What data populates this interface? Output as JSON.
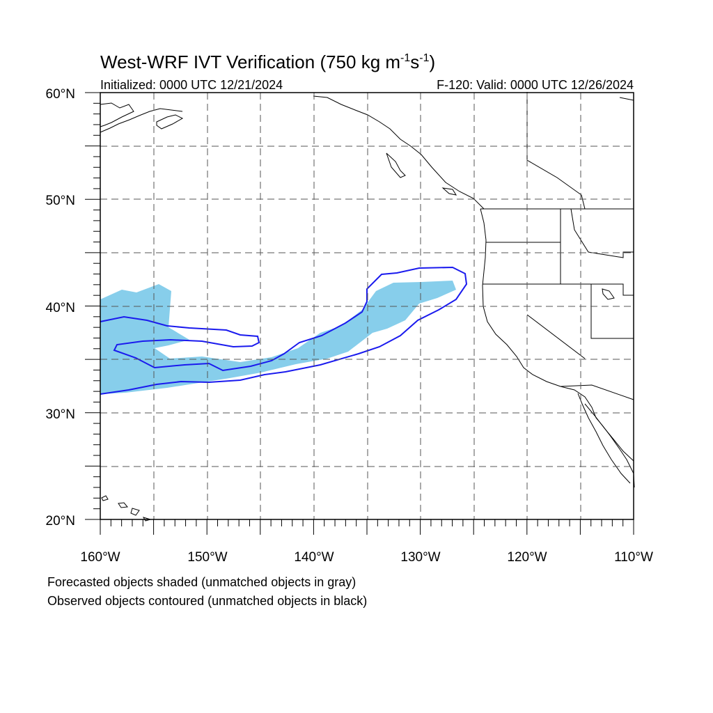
{
  "title": {
    "main": "West-WRF IVT Verification (750 kg m",
    "exp1": "-1",
    "mid": "s",
    "exp2": "-1",
    "close": ")"
  },
  "initialized": "Initialized: 0000 UTC 12/21/2024",
  "valid": "F-120: Valid: 0000 UTC 12/26/2024",
  "lat_labels": [
    "60°N",
    "50°N",
    "40°N",
    "30°N",
    "20°N"
  ],
  "lon_labels": [
    "160°W",
    "150°W",
    "140°W",
    "130°W",
    "120°W",
    "110°W"
  ],
  "footnotes": [
    "Forecasted objects shaded (unmatched objects in gray)",
    "Observed objects contoured (unmatched objects in black)"
  ],
  "colors": {
    "forecast_fill": "#87ceeb",
    "observed_contour": "#1a1aee",
    "coastline": "#000000",
    "grid": "#555555"
  }
}
